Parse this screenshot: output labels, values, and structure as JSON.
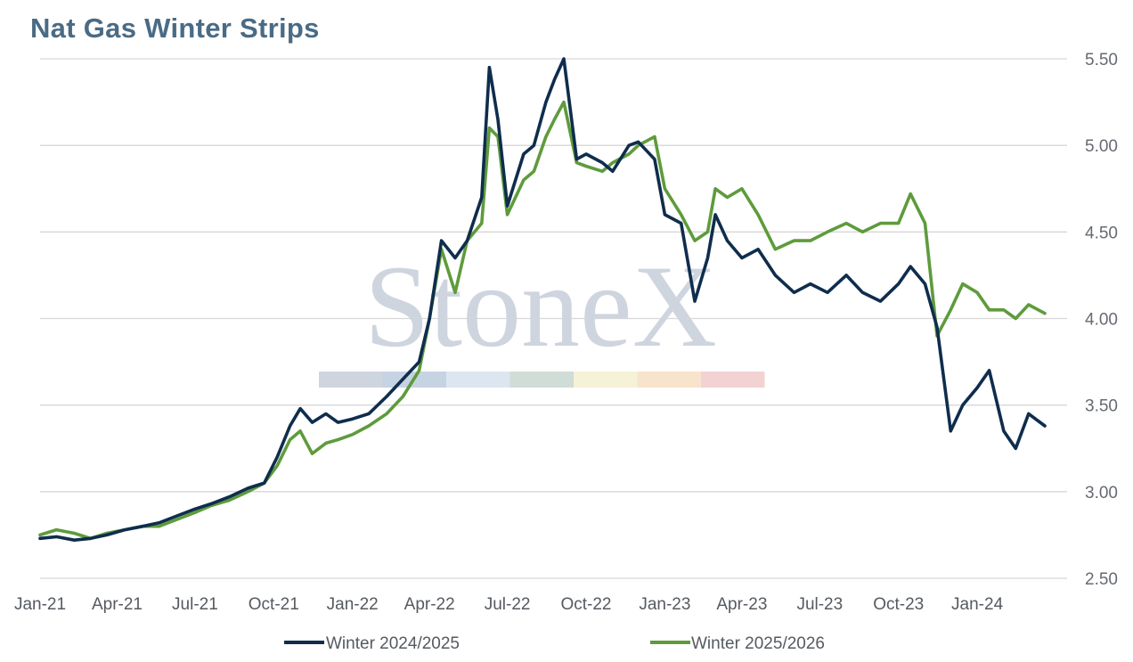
{
  "title": "Nat Gas Winter Strips",
  "watermark": {
    "text": "StoneX",
    "bar_colors": [
      "#cfd5df",
      "#c6d3e3",
      "#dbe6f0",
      "#cfddd6",
      "#f6f2d8",
      "#f8e4cc",
      "#f3d2d3"
    ]
  },
  "colors": {
    "Winter 2024/2025": "#0f2d4d",
    "Winter 2025/2026": "#5e9b3c",
    "grid": "#d7d7d7",
    "title": "#4a6b85"
  },
  "chart_data": {
    "type": "line",
    "title": "Nat Gas Winter Strips",
    "xlabel": "",
    "ylabel": "",
    "ylim": [
      2.5,
      5.5
    ],
    "yticks": [
      "5.50",
      "5.00",
      "4.50",
      "4.00",
      "3.50",
      "3.00",
      "2.50"
    ],
    "xticks": [
      "Jan-21",
      "Apr-21",
      "Jul-21",
      "Oct-21",
      "Jan-22",
      "Apr-22",
      "Jul-22",
      "Oct-22",
      "Jan-23",
      "Apr-23",
      "Jul-23",
      "Oct-23",
      "Jan-24"
    ],
    "y_axis_position": "right",
    "grid": true,
    "legend_position": "bottom",
    "x": [
      "2021-01-01",
      "2021-01-20",
      "2021-02-10",
      "2021-03-01",
      "2021-03-20",
      "2021-04-10",
      "2021-05-01",
      "2021-05-20",
      "2021-06-10",
      "2021-07-01",
      "2021-07-20",
      "2021-08-10",
      "2021-09-01",
      "2021-09-20",
      "2021-10-05",
      "2021-10-20",
      "2021-11-01",
      "2021-11-15",
      "2021-12-01",
      "2021-12-15",
      "2022-01-01",
      "2022-01-20",
      "2022-02-10",
      "2022-03-01",
      "2022-03-20",
      "2022-04-01",
      "2022-04-15",
      "2022-05-01",
      "2022-05-15",
      "2022-06-01",
      "2022-06-10",
      "2022-06-20",
      "2022-07-01",
      "2022-07-20",
      "2022-08-01",
      "2022-08-15",
      "2022-08-25",
      "2022-09-05",
      "2022-09-20",
      "2022-10-01",
      "2022-10-20",
      "2022-11-01",
      "2022-11-20",
      "2022-12-01",
      "2022-12-20",
      "2023-01-01",
      "2023-01-20",
      "2023-02-05",
      "2023-02-20",
      "2023-03-01",
      "2023-03-15",
      "2023-04-01",
      "2023-04-20",
      "2023-05-10",
      "2023-06-01",
      "2023-06-20",
      "2023-07-10",
      "2023-08-01",
      "2023-08-20",
      "2023-09-10",
      "2023-10-01",
      "2023-10-15",
      "2023-11-01",
      "2023-11-15",
      "2023-12-01",
      "2023-12-15",
      "2024-01-01",
      "2024-01-15",
      "2024-02-01",
      "2024-02-15",
      "2024-03-01",
      "2024-03-20"
    ],
    "series": [
      {
        "name": "Winter 2024/2025",
        "values": [
          2.73,
          2.74,
          2.72,
          2.73,
          2.75,
          2.78,
          2.8,
          2.82,
          2.86,
          2.9,
          2.93,
          2.97,
          3.02,
          3.05,
          3.2,
          3.38,
          3.48,
          3.4,
          3.45,
          3.4,
          3.42,
          3.45,
          3.55,
          3.65,
          3.75,
          4.0,
          4.45,
          4.35,
          4.45,
          4.7,
          5.45,
          5.15,
          4.65,
          4.95,
          5.0,
          5.25,
          5.38,
          5.5,
          4.92,
          4.95,
          4.9,
          4.85,
          5.0,
          5.02,
          4.92,
          4.6,
          4.55,
          4.1,
          4.35,
          4.6,
          4.45,
          4.35,
          4.4,
          4.25,
          4.15,
          4.2,
          4.15,
          4.25,
          4.15,
          4.1,
          4.2,
          4.3,
          4.2,
          3.95,
          3.35,
          3.5,
          3.6,
          3.7,
          3.35,
          3.25,
          3.45,
          3.38
        ]
      },
      {
        "name": "Winter 2025/2026",
        "values": [
          2.75,
          2.78,
          2.76,
          2.73,
          2.76,
          2.78,
          2.8,
          2.8,
          2.84,
          2.88,
          2.92,
          2.95,
          3.0,
          3.05,
          3.15,
          3.3,
          3.35,
          3.22,
          3.28,
          3.3,
          3.33,
          3.38,
          3.45,
          3.55,
          3.7,
          4.0,
          4.4,
          4.15,
          4.45,
          4.55,
          5.1,
          5.05,
          4.6,
          4.8,
          4.85,
          5.05,
          5.15,
          5.25,
          4.9,
          4.88,
          4.85,
          4.9,
          4.95,
          5.0,
          5.05,
          4.75,
          4.6,
          4.45,
          4.5,
          4.75,
          4.7,
          4.75,
          4.6,
          4.4,
          4.45,
          4.45,
          4.5,
          4.55,
          4.5,
          4.55,
          4.55,
          4.72,
          4.55,
          3.9,
          4.05,
          4.2,
          4.15,
          4.05,
          4.05,
          4.0,
          4.08,
          4.03
        ]
      }
    ]
  }
}
